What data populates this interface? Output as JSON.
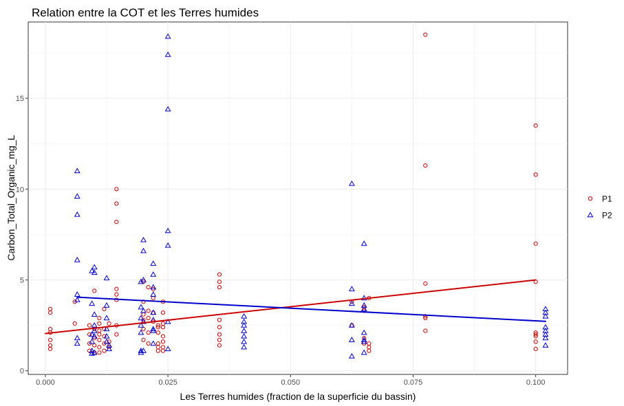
{
  "chart_data": {
    "type": "scatter",
    "title": "Relation entre la COT et les Terres humides",
    "xlabel": "Les Terres humides (fraction de la superficie du bassin)",
    "ylabel": "Carbon_Total_Organic_mg_L",
    "xlim": [
      -0.0035,
      0.1065
    ],
    "ylim": [
      -0.2,
      19.2
    ],
    "x_ticks": [
      0.0,
      0.025,
      0.05,
      0.075,
      0.1
    ],
    "x_tick_labels": [
      "0.000",
      "0.025",
      "0.050",
      "0.075",
      "0.100"
    ],
    "y_ticks": [
      0,
      5,
      10,
      15
    ],
    "y_tick_labels": [
      "0",
      "5",
      "10",
      "15"
    ],
    "grid": true,
    "legend_position": "right",
    "series": [
      {
        "name": "P1",
        "marker": "circle",
        "color": "#cc0000",
        "points": [
          [
            0.001,
            3.4
          ],
          [
            0.001,
            3.2
          ],
          [
            0.001,
            2.3
          ],
          [
            0.001,
            2.1
          ],
          [
            0.001,
            1.7
          ],
          [
            0.001,
            1.4
          ],
          [
            0.001,
            1.2
          ],
          [
            0.006,
            3.8
          ],
          [
            0.006,
            2.6
          ],
          [
            0.009,
            2.5
          ],
          [
            0.009,
            2.0
          ],
          [
            0.009,
            1.5
          ],
          [
            0.009,
            1.1
          ],
          [
            0.01,
            4.4
          ],
          [
            0.01,
            2.3
          ],
          [
            0.01,
            1.8
          ],
          [
            0.01,
            1.4
          ],
          [
            0.01,
            1.0
          ],
          [
            0.011,
            2.9
          ],
          [
            0.011,
            2.6
          ],
          [
            0.011,
            2.2
          ],
          [
            0.011,
            2.0
          ],
          [
            0.011,
            1.7
          ],
          [
            0.011,
            1.3
          ],
          [
            0.011,
            1.0
          ],
          [
            0.012,
            3.4
          ],
          [
            0.012,
            2.3
          ],
          [
            0.012,
            1.9
          ],
          [
            0.012,
            1.5
          ],
          [
            0.012,
            1.1
          ],
          [
            0.013,
            2.6
          ],
          [
            0.013,
            1.6
          ],
          [
            0.013,
            1.3
          ],
          [
            0.0145,
            10.0
          ],
          [
            0.0145,
            9.2
          ],
          [
            0.0145,
            8.2
          ],
          [
            0.0145,
            4.5
          ],
          [
            0.0145,
            4.2
          ],
          [
            0.0145,
            3.9
          ],
          [
            0.0145,
            2.5
          ],
          [
            0.0145,
            2.0
          ],
          [
            0.02,
            4.9
          ],
          [
            0.02,
            3.8
          ],
          [
            0.02,
            3.1
          ],
          [
            0.02,
            2.8
          ],
          [
            0.02,
            2.3
          ],
          [
            0.02,
            1.7
          ],
          [
            0.021,
            4.6
          ],
          [
            0.021,
            3.3
          ],
          [
            0.021,
            2.9
          ],
          [
            0.021,
            2.1
          ],
          [
            0.021,
            1.5
          ],
          [
            0.022,
            4.5
          ],
          [
            0.022,
            4.0
          ],
          [
            0.022,
            3.2
          ],
          [
            0.022,
            2.7
          ],
          [
            0.023,
            2.5
          ],
          [
            0.023,
            2.4
          ],
          [
            0.023,
            2.1
          ],
          [
            0.023,
            1.5
          ],
          [
            0.023,
            1.3
          ],
          [
            0.023,
            1.1
          ],
          [
            0.024,
            3.8
          ],
          [
            0.024,
            3.2
          ],
          [
            0.024,
            2.6
          ],
          [
            0.024,
            2.4
          ],
          [
            0.024,
            1.9
          ],
          [
            0.024,
            1.6
          ],
          [
            0.024,
            1.3
          ],
          [
            0.024,
            1.1
          ],
          [
            0.0355,
            5.3
          ],
          [
            0.0355,
            4.9
          ],
          [
            0.0355,
            4.6
          ],
          [
            0.0355,
            2.8
          ],
          [
            0.0355,
            2.4
          ],
          [
            0.0355,
            2.0
          ],
          [
            0.0355,
            1.7
          ],
          [
            0.0355,
            1.4
          ],
          [
            0.0625,
            3.8
          ],
          [
            0.0625,
            2.5
          ],
          [
            0.065,
            3.5
          ],
          [
            0.065,
            3.3
          ],
          [
            0.065,
            1.8
          ],
          [
            0.065,
            1.5
          ],
          [
            0.066,
            4.0
          ],
          [
            0.066,
            1.5
          ],
          [
            0.066,
            1.3
          ],
          [
            0.066,
            1.1
          ],
          [
            0.0775,
            18.5
          ],
          [
            0.0775,
            11.3
          ],
          [
            0.0775,
            4.8
          ],
          [
            0.0775,
            3.0
          ],
          [
            0.0775,
            2.9
          ],
          [
            0.0775,
            2.2
          ],
          [
            0.1,
            13.5
          ],
          [
            0.1,
            10.8
          ],
          [
            0.1,
            7.0
          ],
          [
            0.1,
            4.9
          ],
          [
            0.1,
            2.1
          ],
          [
            0.1,
            2.0
          ],
          [
            0.1,
            1.9
          ],
          [
            0.1,
            1.6
          ],
          [
            0.1,
            1.2
          ]
        ],
        "trend": [
          [
            0.0,
            2.05
          ],
          [
            0.1,
            5.0
          ]
        ]
      },
      {
        "name": "P2",
        "marker": "triangle",
        "color": "#0000cc",
        "points": [
          [
            0.0065,
            11.0
          ],
          [
            0.0065,
            9.6
          ],
          [
            0.0065,
            8.6
          ],
          [
            0.0065,
            6.1
          ],
          [
            0.0065,
            4.2
          ],
          [
            0.0065,
            3.9
          ],
          [
            0.0065,
            1.8
          ],
          [
            0.0065,
            1.5
          ],
          [
            0.0095,
            5.5
          ],
          [
            0.0095,
            3.7
          ],
          [
            0.0095,
            2.0
          ],
          [
            0.0095,
            1.6
          ],
          [
            0.0095,
            1.1
          ],
          [
            0.0095,
            0.95
          ],
          [
            0.01,
            5.7
          ],
          [
            0.01,
            5.4
          ],
          [
            0.01,
            3.1
          ],
          [
            0.01,
            2.5
          ],
          [
            0.01,
            2.2
          ],
          [
            0.01,
            1.9
          ],
          [
            0.01,
            1.0
          ],
          [
            0.0125,
            5.1
          ],
          [
            0.0125,
            3.6
          ],
          [
            0.0125,
            2.9
          ],
          [
            0.0125,
            2.3
          ],
          [
            0.0125,
            1.9
          ],
          [
            0.0125,
            1.6
          ],
          [
            0.013,
            1.4
          ],
          [
            0.013,
            1.2
          ],
          [
            0.0195,
            4.9
          ],
          [
            0.0195,
            3.5
          ],
          [
            0.0195,
            2.9
          ],
          [
            0.0195,
            2.5
          ],
          [
            0.0195,
            2.1
          ],
          [
            0.0195,
            1.1
          ],
          [
            0.0195,
            1.0
          ],
          [
            0.02,
            7.2
          ],
          [
            0.02,
            6.6
          ],
          [
            0.02,
            5.0
          ],
          [
            0.02,
            3.3
          ],
          [
            0.02,
            2.7
          ],
          [
            0.02,
            1.1
          ],
          [
            0.022,
            5.9
          ],
          [
            0.022,
            5.3
          ],
          [
            0.022,
            4.6
          ],
          [
            0.022,
            4.2
          ],
          [
            0.022,
            3.2
          ],
          [
            0.022,
            2.8
          ],
          [
            0.022,
            2.3
          ],
          [
            0.022,
            2.2
          ],
          [
            0.022,
            1.5
          ],
          [
            0.025,
            18.4
          ],
          [
            0.025,
            17.4
          ],
          [
            0.025,
            14.4
          ],
          [
            0.025,
            7.7
          ],
          [
            0.025,
            6.9
          ],
          [
            0.025,
            2.7
          ],
          [
            0.025,
            1.2
          ],
          [
            0.0405,
            3.0
          ],
          [
            0.0405,
            2.7
          ],
          [
            0.0405,
            2.5
          ],
          [
            0.0405,
            2.2
          ],
          [
            0.0405,
            1.9
          ],
          [
            0.0405,
            1.6
          ],
          [
            0.0405,
            1.3
          ],
          [
            0.0625,
            10.3
          ],
          [
            0.0625,
            4.5
          ],
          [
            0.0625,
            3.7
          ],
          [
            0.0625,
            2.5
          ],
          [
            0.0625,
            1.7
          ],
          [
            0.0625,
            0.8
          ],
          [
            0.065,
            7.0
          ],
          [
            0.065,
            4.0
          ],
          [
            0.065,
            3.6
          ],
          [
            0.065,
            3.4
          ],
          [
            0.065,
            2.1
          ],
          [
            0.065,
            1.7
          ],
          [
            0.065,
            1.6
          ],
          [
            0.065,
            1.0
          ],
          [
            0.102,
            3.4
          ],
          [
            0.102,
            3.2
          ],
          [
            0.102,
            3.0
          ],
          [
            0.102,
            2.4
          ],
          [
            0.102,
            2.2
          ],
          [
            0.102,
            2.0
          ],
          [
            0.102,
            1.8
          ],
          [
            0.102,
            1.4
          ]
        ],
        "trend": [
          [
            0.0065,
            4.05
          ],
          [
            0.102,
            2.72
          ]
        ]
      }
    ]
  }
}
